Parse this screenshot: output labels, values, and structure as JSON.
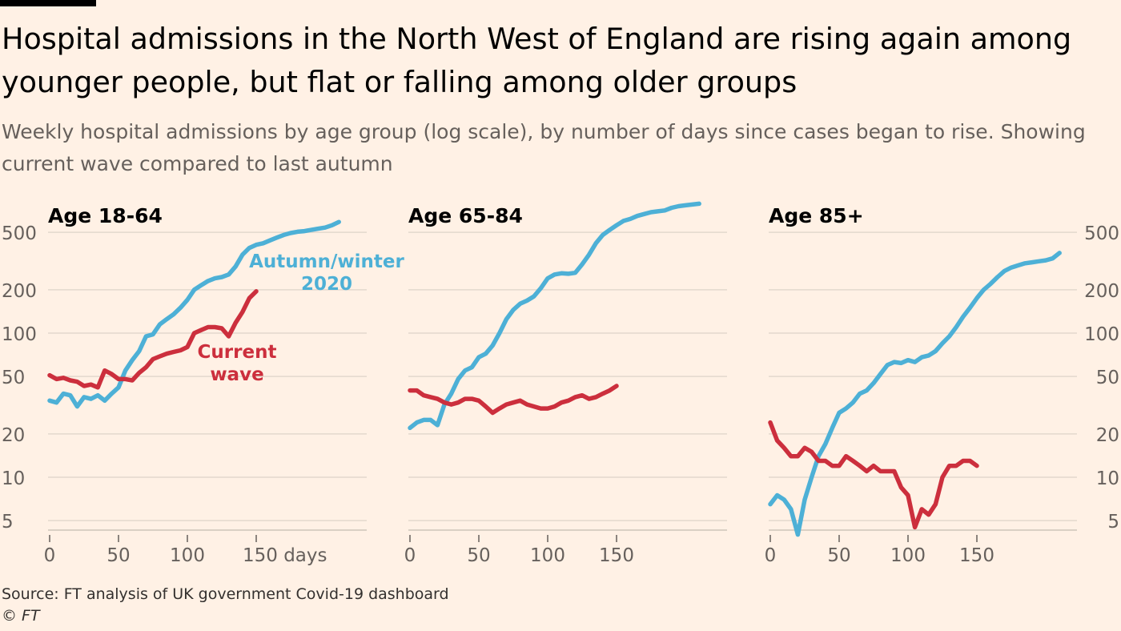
{
  "header": {
    "title": "Hospital admissions in the North West of England are rising again among younger people, but flat or falling among older groups",
    "subtitle": "Weekly hospital admissions by age group (log scale), by number of days since cases began to rise. Showing current wave compared to last autumn"
  },
  "footer": {
    "source": "Source: FT analysis of UK government Covid-19 dashboard",
    "credit": "© FT"
  },
  "colors": {
    "background": "#FFF1E5",
    "autumn": "#4DB0D6",
    "current": "#CC2F3D",
    "grid": "#E3D8CD",
    "axis_text": "#66605C"
  },
  "chart_data": [
    {
      "type": "line",
      "title": "Age 18-64",
      "y_scale": "log",
      "ylim": [
        4,
        800
      ],
      "xlim": [
        0,
        210
      ],
      "x_ticks": [
        0,
        50,
        100,
        150
      ],
      "x_tick_labels": [
        "0",
        "50",
        "100",
        "150 days"
      ],
      "y_ticks": [
        5,
        10,
        20,
        50,
        100,
        200,
        500
      ],
      "y_tick_labels": [
        "5",
        "10",
        "20",
        "50",
        "100",
        "200",
        "500"
      ],
      "y_tick_side": "left",
      "annotations": [
        {
          "series": "autumn",
          "lines": [
            "Autumn/winter",
            "2020"
          ]
        },
        {
          "series": "current",
          "lines": [
            "Current",
            "wave"
          ]
        }
      ],
      "series": [
        {
          "key": "autumn",
          "x": [
            0,
            5,
            10,
            15,
            20,
            25,
            30,
            35,
            40,
            45,
            50,
            55,
            60,
            65,
            70,
            75,
            80,
            85,
            90,
            95,
            100,
            105,
            110,
            115,
            120,
            125,
            130,
            135,
            140,
            145,
            150,
            155,
            160,
            165,
            170,
            175,
            180,
            185,
            190,
            195,
            200,
            205,
            210
          ],
          "y": [
            34,
            33,
            38,
            37,
            31,
            36,
            35,
            37,
            34,
            38,
            42,
            55,
            65,
            75,
            95,
            98,
            115,
            125,
            135,
            150,
            170,
            200,
            215,
            230,
            240,
            245,
            255,
            290,
            350,
            390,
            410,
            420,
            440,
            460,
            480,
            495,
            505,
            510,
            520,
            530,
            540,
            560,
            590
          ]
        },
        {
          "key": "current",
          "x": [
            0,
            5,
            10,
            15,
            20,
            25,
            30,
            35,
            40,
            45,
            50,
            55,
            60,
            65,
            70,
            75,
            80,
            85,
            90,
            95,
            100,
            105,
            110,
            115,
            120,
            125,
            130,
            135,
            140,
            145,
            150
          ],
          "y": [
            51,
            48,
            49,
            47,
            46,
            43,
            44,
            42,
            55,
            52,
            48,
            48,
            47,
            53,
            58,
            66,
            69,
            72,
            74,
            76,
            80,
            100,
            105,
            110,
            110,
            108,
            95,
            118,
            140,
            175,
            195
          ]
        }
      ]
    },
    {
      "type": "line",
      "title": "Age 65-84",
      "y_scale": "log",
      "ylim": [
        4,
        800
      ],
      "xlim": [
        0,
        210
      ],
      "x_ticks": [
        0,
        50,
        100,
        150
      ],
      "x_tick_labels": [
        "0",
        "50",
        "100",
        "150"
      ],
      "y_ticks": [
        5,
        10,
        20,
        50,
        100,
        200,
        500
      ],
      "y_tick_labels": [],
      "series": [
        {
          "key": "autumn",
          "x": [
            0,
            5,
            10,
            15,
            20,
            25,
            30,
            35,
            40,
            45,
            50,
            55,
            60,
            65,
            70,
            75,
            80,
            85,
            90,
            95,
            100,
            105,
            110,
            115,
            120,
            125,
            130,
            135,
            140,
            145,
            150,
            155,
            160,
            165,
            170,
            175,
            180,
            185,
            190,
            195,
            200,
            205,
            210
          ],
          "y": [
            22,
            24,
            25,
            25,
            23,
            32,
            38,
            48,
            55,
            58,
            68,
            72,
            82,
            100,
            125,
            145,
            160,
            168,
            180,
            205,
            240,
            255,
            260,
            258,
            262,
            300,
            350,
            420,
            480,
            520,
            560,
            600,
            620,
            650,
            670,
            690,
            700,
            710,
            740,
            760,
            770,
            780,
            790
          ]
        },
        {
          "key": "current",
          "x": [
            0,
            5,
            10,
            15,
            20,
            25,
            30,
            35,
            40,
            45,
            50,
            55,
            60,
            65,
            70,
            75,
            80,
            85,
            90,
            95,
            100,
            105,
            110,
            115,
            120,
            125,
            130,
            135,
            140,
            145,
            150
          ],
          "y": [
            40,
            40,
            37,
            36,
            35,
            33,
            32,
            33,
            35,
            35,
            34,
            31,
            28,
            30,
            32,
            33,
            34,
            32,
            31,
            30,
            30,
            31,
            33,
            34,
            36,
            37,
            35,
            36,
            38,
            40,
            43
          ]
        }
      ]
    },
    {
      "type": "line",
      "title": "Age 85+",
      "y_scale": "log",
      "ylim": [
        4,
        800
      ],
      "xlim": [
        0,
        210
      ],
      "x_ticks": [
        0,
        50,
        100,
        150
      ],
      "x_tick_labels": [
        "0",
        "50",
        "100",
        "150"
      ],
      "y_ticks": [
        5,
        10,
        20,
        50,
        100,
        200,
        500
      ],
      "y_tick_labels": [
        "5",
        "10",
        "20",
        "50",
        "100",
        "200",
        "500"
      ],
      "y_tick_side": "right",
      "series": [
        {
          "key": "autumn",
          "x": [
            0,
            5,
            10,
            15,
            20,
            25,
            30,
            35,
            40,
            45,
            50,
            55,
            60,
            65,
            70,
            75,
            80,
            85,
            90,
            95,
            100,
            105,
            110,
            115,
            120,
            125,
            130,
            135,
            140,
            145,
            150,
            155,
            160,
            165,
            170,
            175,
            180,
            185,
            190,
            195,
            200,
            205,
            210
          ],
          "y": [
            6.5,
            7.5,
            7,
            6,
            4,
            7,
            10,
            14,
            17,
            22,
            28,
            30,
            33,
            38,
            40,
            45,
            52,
            60,
            63,
            62,
            65,
            63,
            68,
            70,
            75,
            85,
            95,
            110,
            130,
            150,
            175,
            200,
            220,
            245,
            270,
            285,
            295,
            305,
            310,
            315,
            320,
            330,
            360
          ]
        },
        {
          "key": "current",
          "x": [
            0,
            5,
            10,
            15,
            20,
            25,
            30,
            35,
            40,
            45,
            50,
            55,
            60,
            65,
            70,
            75,
            80,
            85,
            90,
            95,
            100,
            105,
            110,
            115,
            120,
            125,
            130,
            135,
            140,
            145,
            150
          ],
          "y": [
            24,
            18,
            16,
            14,
            14,
            16,
            15,
            13,
            13,
            12,
            12,
            14,
            13,
            12,
            11,
            12,
            11,
            11,
            11,
            8.5,
            7.5,
            4.5,
            6,
            5.5,
            6.5,
            10,
            12,
            12,
            13,
            13,
            12
          ]
        }
      ]
    }
  ]
}
